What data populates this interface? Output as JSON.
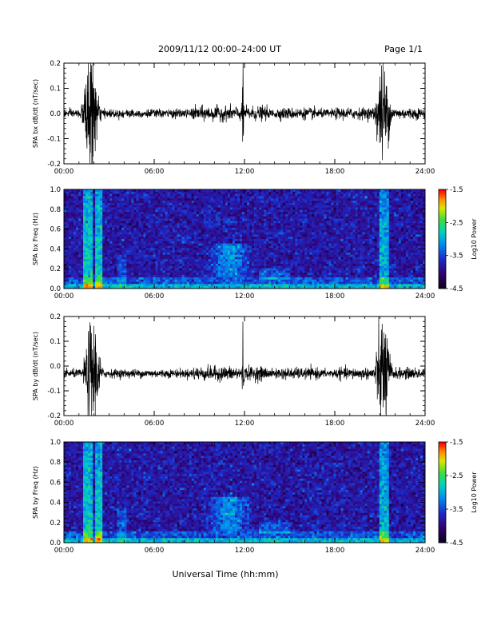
{
  "header": {
    "title": "2009/11/12  00:00–24:00 UT",
    "page": "Page 1/1"
  },
  "xaxis_label": "Universal Time (hh:mm)",
  "chart_data": [
    {
      "type": "line",
      "ylabel": "SPA bx dB/dt (nT/sec)",
      "xlim": [
        0,
        24
      ],
      "ylim": [
        -0.2,
        0.2
      ],
      "xticks": [
        "00:00",
        "06:00",
        "12:00",
        "18:00",
        "24:00"
      ],
      "yticks": [
        "0.2",
        "0.1",
        "0.0",
        "-0.1",
        "-0.2"
      ],
      "baseline": 0.0,
      "bursts": [
        {
          "t": 1.8,
          "amp": 0.2
        },
        {
          "t": 11.9,
          "amp": 0.2
        },
        {
          "t": 21.2,
          "amp": 0.17
        }
      ]
    },
    {
      "type": "heatmap",
      "ylabel": "SPA bx Freq (Hz)",
      "xlim": [
        0,
        24
      ],
      "ylim": [
        0,
        1.0
      ],
      "xticks": [
        "00:00",
        "06:00",
        "12:00",
        "18:00",
        "24:00"
      ],
      "yticks": [
        "1.0",
        "0.8",
        "0.6",
        "0.4",
        "0.2",
        "0.0"
      ],
      "colorbar": {
        "label": "Log10 Power",
        "range": [
          -4.5,
          -1.5
        ],
        "ticks": [
          "-1.5",
          "-2.5",
          "-3.5",
          "-4.5"
        ]
      }
    },
    {
      "type": "line",
      "ylabel": "SPA by dB/dt (nT/sec)",
      "xlim": [
        0,
        24
      ],
      "ylim": [
        -0.2,
        0.2
      ],
      "xticks": [
        "00:00",
        "06:00",
        "12:00",
        "18:00",
        "24:00"
      ],
      "yticks": [
        "0.2",
        "0.1",
        "0.0",
        "-0.1",
        "-0.2"
      ],
      "baseline": -0.03,
      "bursts": [
        {
          "t": 1.9,
          "amp": 0.2
        },
        {
          "t": 11.9,
          "amp": 0.17
        },
        {
          "t": 21.2,
          "amp": 0.2
        }
      ]
    },
    {
      "type": "heatmap",
      "ylabel": "SPA by Freq (Hz)",
      "xlim": [
        0,
        24
      ],
      "ylim": [
        0,
        1.0
      ],
      "xticks": [
        "00:00",
        "06:00",
        "12:00",
        "18:00",
        "24:00"
      ],
      "yticks": [
        "1.0",
        "0.8",
        "0.6",
        "0.4",
        "0.2",
        "0.0"
      ],
      "colorbar": {
        "label": "Log10 Power",
        "range": [
          -4.5,
          -1.5
        ],
        "ticks": [
          "-1.5",
          "-2.5",
          "-3.5",
          "-4.5"
        ]
      }
    }
  ]
}
